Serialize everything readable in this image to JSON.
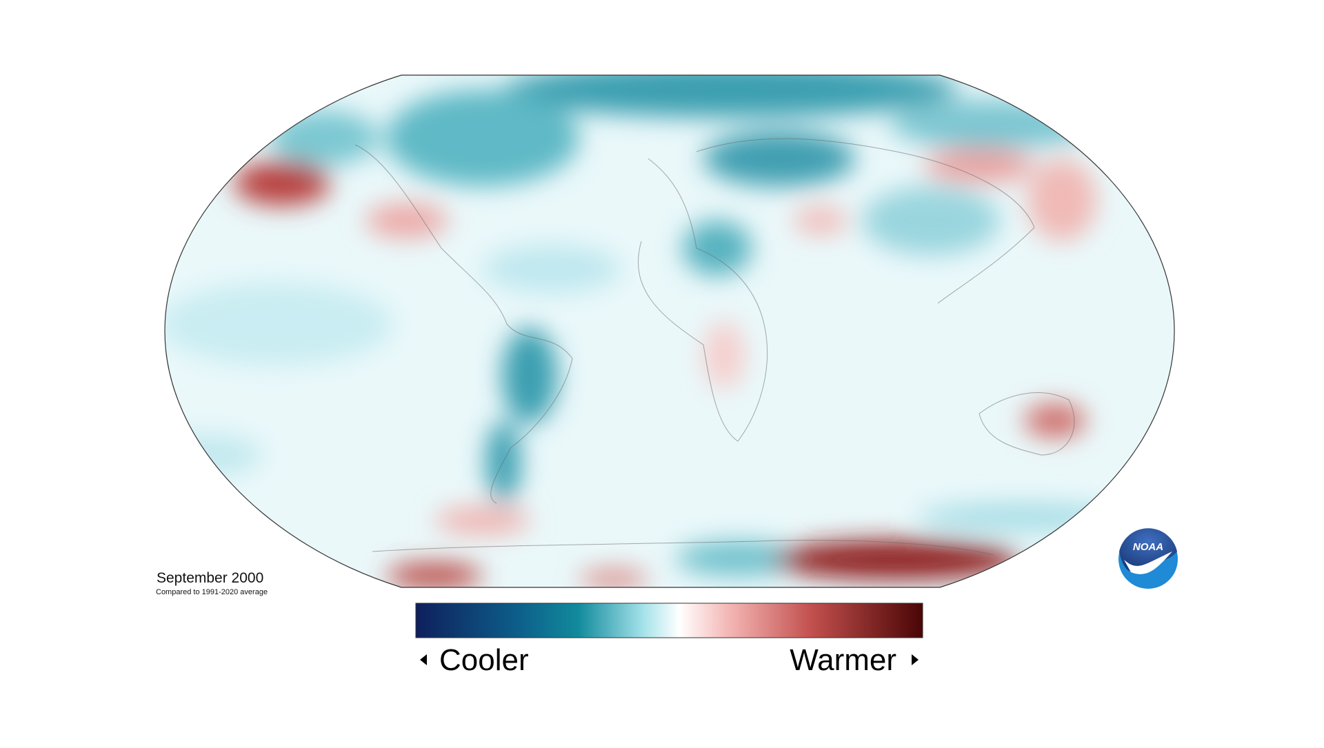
{
  "map": {
    "title": "September 2000",
    "subtitle": "Compared to 1991-2020 average"
  },
  "legend": {
    "low_label": "Cooler",
    "high_label": "Warmer"
  },
  "logo": {
    "text": "NOAA"
  }
}
